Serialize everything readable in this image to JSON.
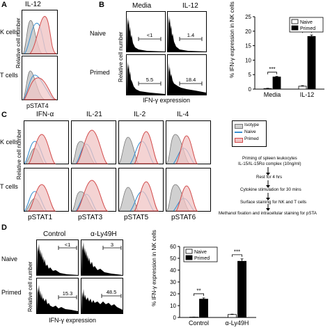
{
  "panelA": {
    "letter": "A",
    "title": "IL-12",
    "ylabel": "Relative cell number",
    "xlabel": "pSTAT4",
    "rows": [
      "K cells",
      "T cells"
    ]
  },
  "panelB": {
    "letter": "B",
    "cols": [
      "Media",
      "IL-12"
    ],
    "rows": [
      "Naive",
      "Primed"
    ],
    "ylabel": "Relative cell number",
    "xlabel": "IFN-γ expression",
    "gates": [
      [
        "<1",
        "1.4"
      ],
      [
        "5.5",
        "18.4"
      ]
    ]
  },
  "panelC": {
    "letter": "C",
    "cols": [
      "IFN-α",
      "IL-21",
      "IL-2",
      "IL-4"
    ],
    "xlabels": [
      "pSTAT1",
      "pSTAT3",
      "pSTAT5",
      "pSTAT6"
    ],
    "rows": [
      "K cells",
      "T cells"
    ],
    "ylabel": "Relative cell number",
    "legend": [
      "Isotype",
      "Naive",
      "Primed"
    ],
    "flow": [
      "Priming of spleen leukocytes",
      "IL-15/IL-15Rα complex  (10ng/ml)",
      "Rest for 4 hrs",
      "Cytokine stimulation for 30 mins",
      "Surface staining for NK and T cells",
      "Methanol fixation and intracellular staining for pSTA"
    ]
  },
  "panelD": {
    "letter": "D",
    "cols": [
      "Control",
      "α-Ly49H"
    ],
    "rows": [
      "Naive",
      "Primed"
    ],
    "ylabel": "Relative cell number",
    "xlabel": "IFN-γ expression",
    "gates": [
      [
        "<1",
        "3"
      ],
      [
        "15.3",
        "48.5"
      ]
    ]
  },
  "colors": {
    "isotype": "#9a9a9a",
    "naive": "#3a8fd0",
    "primed": "#d24a4a",
    "primed_fill": "#f0c4c4",
    "bar_naive": "#ffffff",
    "bar_primed": "#000000"
  },
  "chart_data": [
    {
      "type": "bar",
      "ylabel": "% IFN-γ expression in NK cells",
      "categories": [
        "Media",
        "IL-12"
      ],
      "series": [
        {
          "name": "Naive",
          "values": [
            0.2,
            1.0
          ],
          "err": [
            0.1,
            0.2
          ]
        },
        {
          "name": "Primed",
          "values": [
            4.2,
            18.2
          ],
          "err": [
            0.2,
            0.5
          ]
        }
      ],
      "ylim": [
        0,
        25
      ],
      "ticks": [
        "0",
        "5",
        "10",
        "15",
        "20",
        "25"
      ],
      "significance": [
        "***",
        "***"
      ],
      "legend_position": "top-right"
    },
    {
      "type": "bar",
      "ylabel": "% IFN-γ expression in NK cells",
      "categories": [
        "Control",
        "α-Ly49H"
      ],
      "series": [
        {
          "name": "Naive",
          "values": [
            0.3,
            2.5
          ],
          "err": [
            0.1,
            0.3
          ]
        },
        {
          "name": "Primed",
          "values": [
            15.5,
            47.5
          ],
          "err": [
            1.0,
            2.0
          ]
        }
      ],
      "ylim": [
        0,
        60
      ],
      "ticks": [
        "0",
        "10",
        "20",
        "30",
        "40",
        "50",
        "60"
      ],
      "significance": [
        "**",
        "***"
      ],
      "legend_position": "top-left"
    }
  ]
}
